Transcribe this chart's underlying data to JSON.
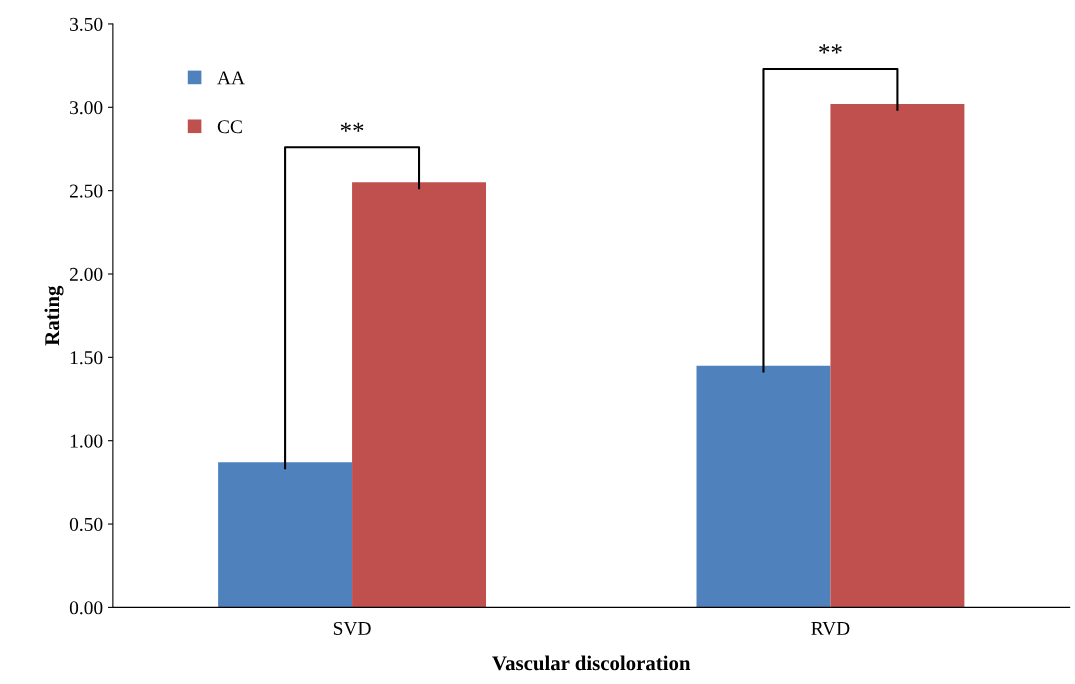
{
  "chart_data": {
    "type": "bar",
    "xlabel": "Vascular discoloration",
    "ylabel": "Rating",
    "categories": [
      "SVD",
      "RVD"
    ],
    "series": [
      {
        "name": "AA",
        "color": "#4f81bd",
        "values": [
          0.87,
          1.45
        ]
      },
      {
        "name": "CC",
        "color": "#c0504d",
        "values": [
          2.55,
          3.02
        ]
      }
    ],
    "ylim": [
      0,
      3.5
    ],
    "yticks": [
      {
        "value": 0,
        "label": "0.00"
      },
      {
        "value": 0.5,
        "label": "0.50"
      },
      {
        "value": 1,
        "label": "1.00"
      },
      {
        "value": 1.5,
        "label": "1.50"
      },
      {
        "value": 2,
        "label": "2.00"
      },
      {
        "value": 2.5,
        "label": "2.50"
      },
      {
        "value": 3,
        "label": "3.00"
      },
      {
        "value": 3.5,
        "label": "3.50"
      }
    ],
    "annotations": [
      "**",
      "**"
    ],
    "legend": "top left",
    "grid": false
  }
}
